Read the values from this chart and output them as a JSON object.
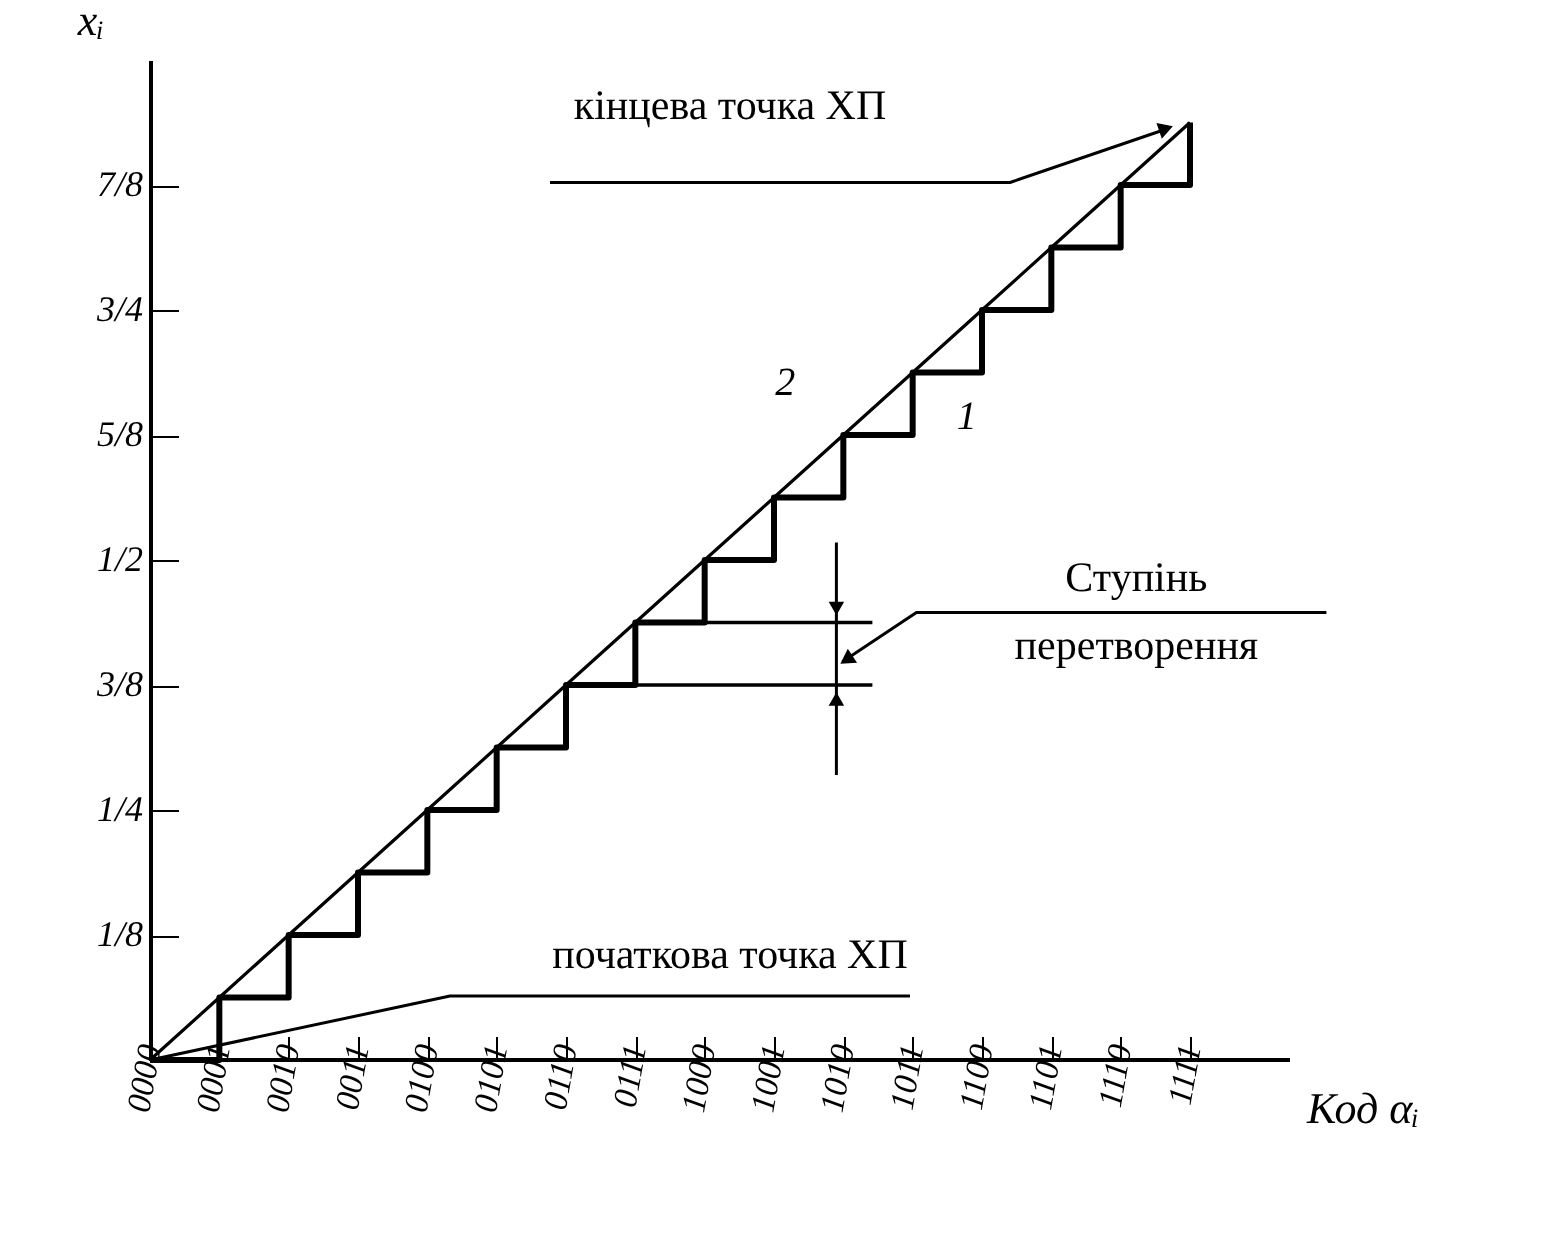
{
  "chart_data": {
    "type": "line",
    "xlabel": "Код αᵢ",
    "ylabel": "xᵢ",
    "categories": [
      "0000",
      "0001",
      "0010",
      "0011",
      "0100",
      "0101",
      "0110",
      "0111",
      "1000",
      "1001",
      "1010",
      "1011",
      "1100",
      "1101",
      "1110",
      "1111"
    ],
    "series": [
      {
        "name": "1",
        "type": "step",
        "color": "#000000",
        "values": [
          0,
          0.0625,
          0.125,
          0.1875,
          0.25,
          0.3125,
          0.375,
          0.4375,
          0.5,
          0.5625,
          0.625,
          0.6875,
          0.75,
          0.8125,
          0.875,
          0.9375
        ]
      },
      {
        "name": "2",
        "type": "line",
        "color": "#000000",
        "values": [
          0,
          0.0625,
          0.125,
          0.1875,
          0.25,
          0.3125,
          0.375,
          0.4375,
          0.5,
          0.5625,
          0.625,
          0.6875,
          0.75,
          0.8125,
          0.875,
          0.9375
        ]
      }
    ],
    "ylim": [
      0,
      1
    ],
    "yticks": [
      {
        "value": 0.125,
        "label": "1/8"
      },
      {
        "value": 0.25,
        "label": "1/4"
      },
      {
        "value": 0.375,
        "label": "3/8"
      },
      {
        "value": 0.5,
        "label": "1/2"
      },
      {
        "value": 0.625,
        "label": "5/8"
      },
      {
        "value": 0.75,
        "label": "3/4"
      },
      {
        "value": 0.875,
        "label": "7/8"
      }
    ],
    "annotations": [
      "кінцева точка ХП",
      "Ступінь перетворення",
      "початкова точка ХП"
    ],
    "ref_lines": [
      {
        "axis": "y",
        "value": 0.375
      },
      {
        "axis": "y",
        "value": 0.4375
      }
    ]
  }
}
